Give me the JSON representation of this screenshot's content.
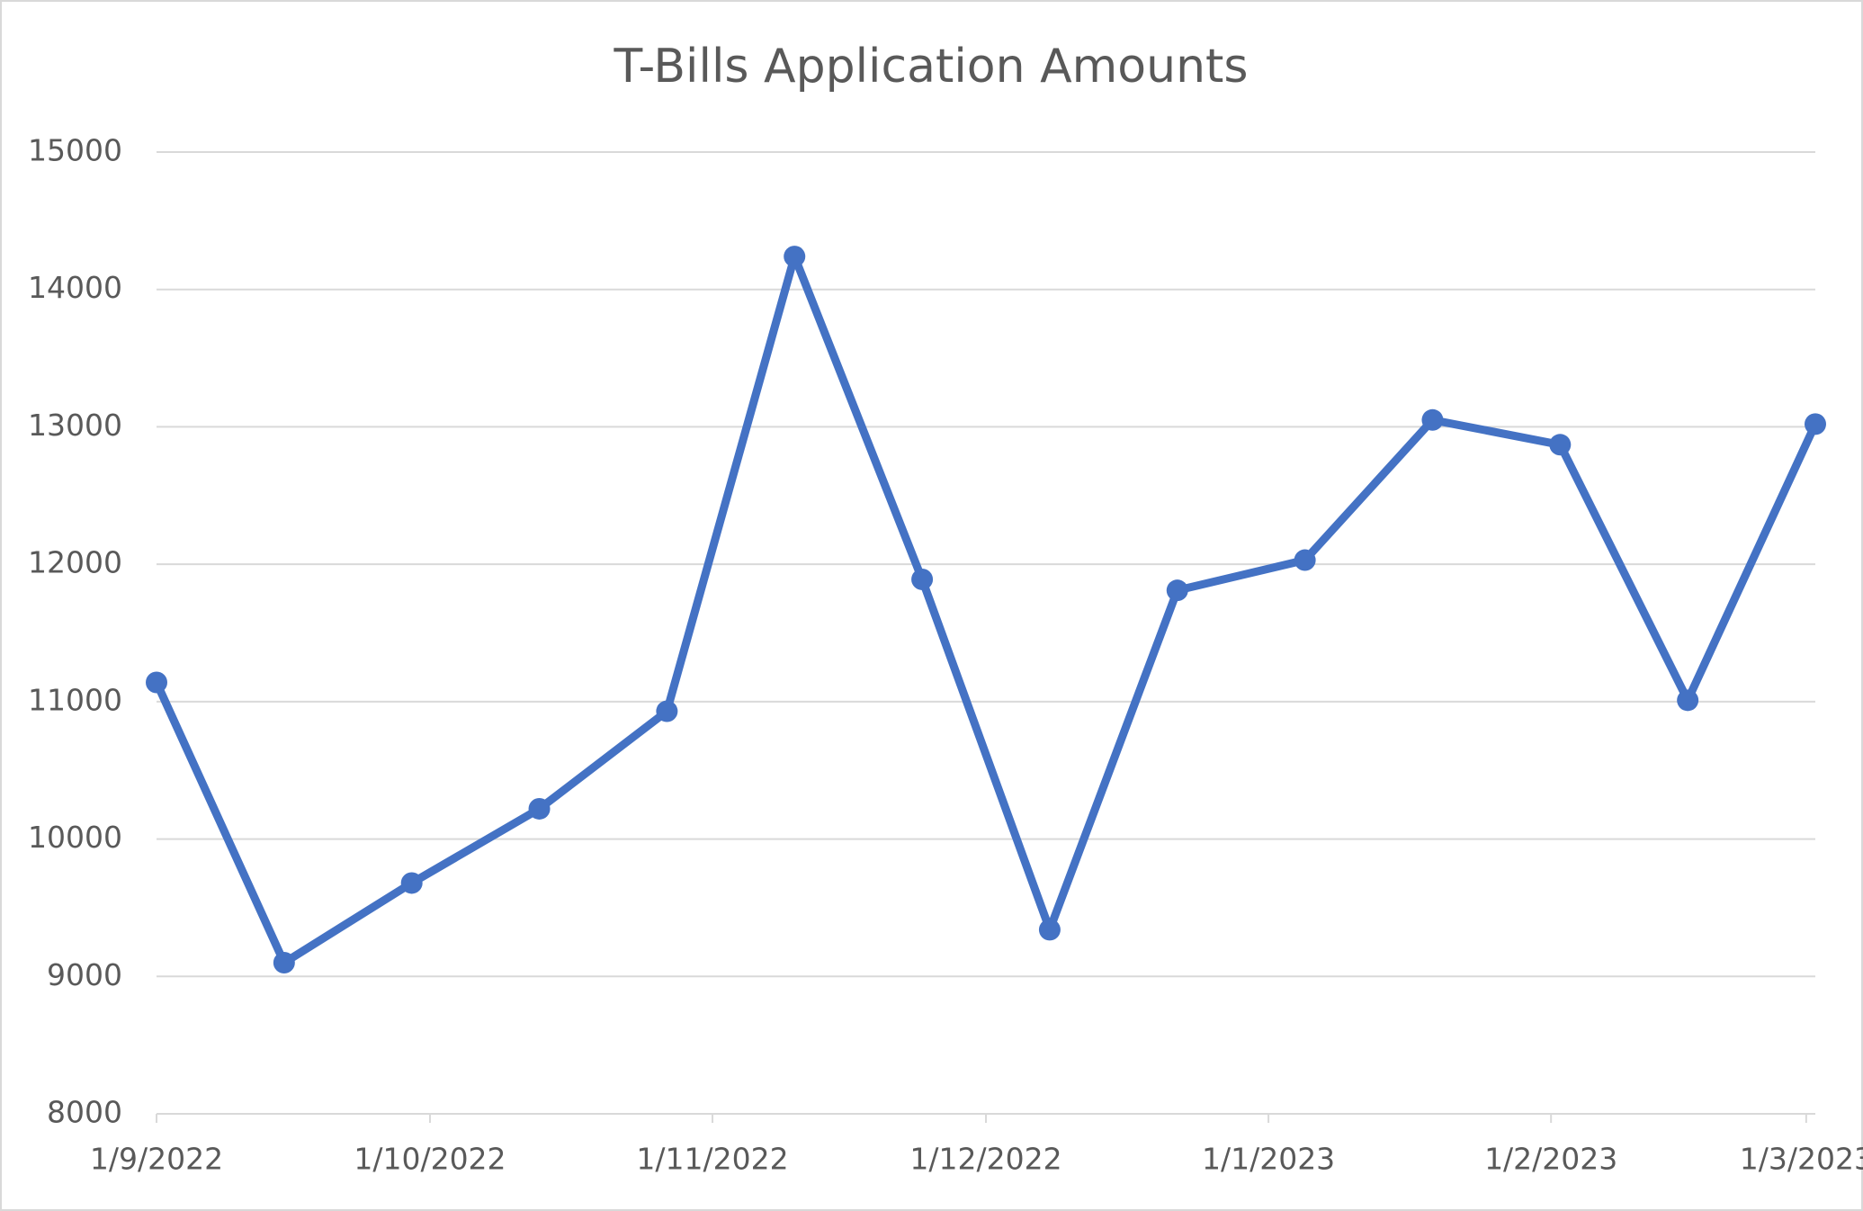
{
  "chart_data": {
    "type": "line",
    "title": "T-Bills Application Amounts",
    "x": [
      "1/9/2022",
      "15/9/2022",
      "29/9/2022",
      "13/10/2022",
      "27/10/2022",
      "10/11/2022",
      "24/11/2022",
      "8/12/2022",
      "22/12/2022",
      "5/1/2023",
      "19/1/2023",
      "2/2/2023",
      "16/2/2023",
      "2/3/2023"
    ],
    "series": [
      {
        "name": "T-Bills Application Amounts",
        "color": "#4472c4",
        "values": [
          11140,
          9100,
          9680,
          10220,
          10930,
          14240,
          11890,
          9340,
          11810,
          12030,
          13050,
          12870,
          11010,
          13020
        ]
      }
    ],
    "xlim": [
      "1/9/2022",
      "2/3/2023"
    ],
    "xticks": [
      "1/9/2022",
      "1/10/2022",
      "1/11/2022",
      "1/12/2022",
      "1/1/2023",
      "1/2/2023",
      "1/3/2023"
    ],
    "ylim": [
      8000,
      15000
    ],
    "yticks": [
      8000,
      9000,
      10000,
      11000,
      12000,
      13000,
      14000,
      15000
    ],
    "grid": true
  }
}
